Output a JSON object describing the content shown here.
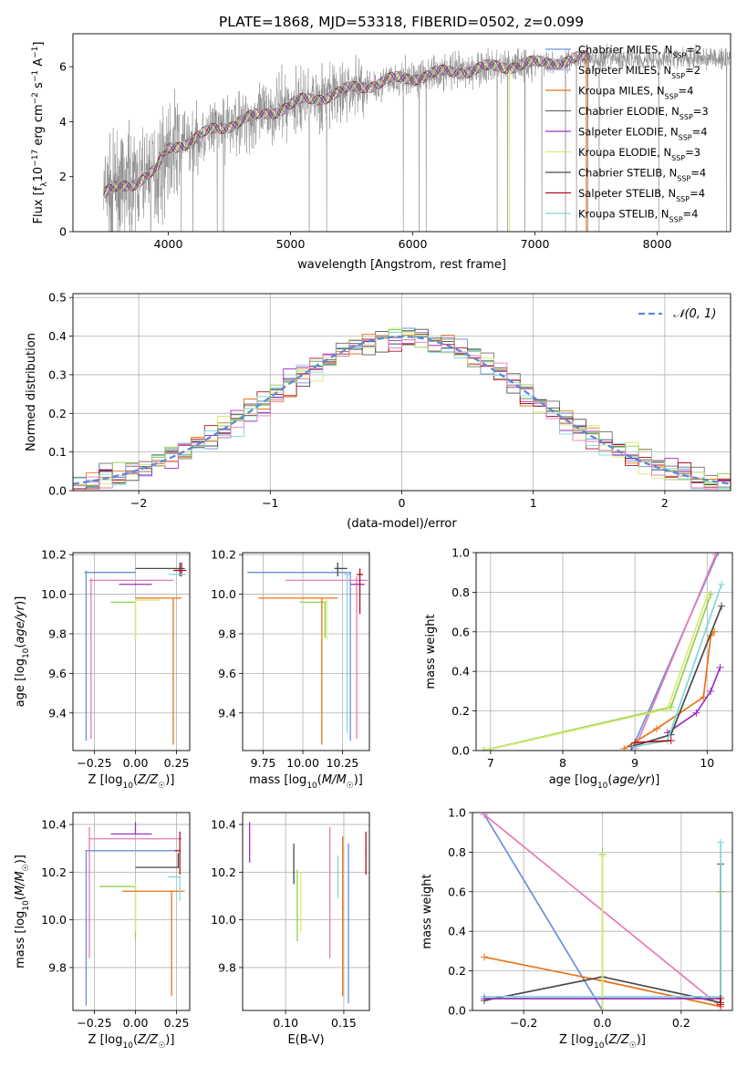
{
  "figure_title": "PLATE=1868, MJD=53318, FIBERID=0502, z=0.099",
  "colors": [
    "#6a8fdc",
    "#b0b0e8",
    "#e97316",
    "#6c6c6c",
    "#9b30c0",
    "#d8e874",
    "#4a4a4a",
    "#b01020",
    "#7fd8d8",
    "#8fd050",
    "#e87ab8"
  ],
  "chart_data": [
    {
      "id": "spectrum",
      "type": "line",
      "title": "PLATE=1868, MJD=53318, FIBERID=0502, z=0.099",
      "xlabel": "wavelength [Angstrom, rest frame]",
      "ylabel": "Flux [f_λ 10^-17 erg cm^-2 s^-1 A^-1]",
      "xlim": [
        3220,
        8600
      ],
      "ylim": [
        0,
        7.2
      ],
      "xticks": [
        4000,
        5000,
        6000,
        7000,
        8000
      ],
      "yticks": [
        0,
        2,
        4,
        6
      ],
      "grid": false,
      "legend_position": "top-right",
      "continuum": {
        "x": [
          3460,
          3520,
          3600,
          3700,
          3800,
          3900,
          4000,
          4100,
          4200,
          4300,
          4400,
          4500,
          4600,
          4700,
          4800,
          4900,
          5000,
          5100,
          5200,
          5300,
          5400,
          5500,
          5600,
          5700,
          5800,
          5900,
          6000,
          6100,
          6200,
          6300,
          6400,
          6500,
          6600,
          6700,
          6800,
          6900,
          7000,
          7100,
          7200,
          7300,
          7400
        ],
        "y": [
          1.3,
          1.45,
          1.6,
          1.75,
          2.0,
          2.2,
          3.0,
          3.2,
          3.35,
          3.55,
          3.75,
          3.9,
          4.05,
          4.15,
          4.3,
          4.45,
          4.6,
          4.75,
          4.85,
          4.95,
          5.05,
          5.2,
          5.3,
          5.4,
          5.5,
          5.55,
          5.6,
          5.7,
          5.75,
          5.8,
          5.85,
          5.9,
          5.95,
          6.0,
          6.05,
          6.1,
          6.1,
          6.15,
          6.2,
          6.25,
          6.3
        ]
      },
      "series": [
        {
          "name": "Chabrier MILES, N_SSP=2",
          "color": "#6a8fdc"
        },
        {
          "name": "Salpeter MILES, N_SSP=2",
          "color": "#b0b0e8"
        },
        {
          "name": "Kroupa MILES, N_SSP=4",
          "color": "#e97316"
        },
        {
          "name": "Chabrier ELODIE, N_SSP=3",
          "color": "#6c6c6c"
        },
        {
          "name": "Salpeter ELODIE, N_SSP=4",
          "color": "#9b30c0"
        },
        {
          "name": "Kroupa ELODIE, N_SSP=3",
          "color": "#d8e874"
        },
        {
          "name": "Chabrier STELIB, N_SSP=4",
          "color": "#4a4a4a"
        },
        {
          "name": "Salpeter STELIB, N_SSP=4",
          "color": "#b01020"
        },
        {
          "name": "Kroupa STELIB, N_SSP=4",
          "color": "#7fd8d8"
        }
      ]
    },
    {
      "id": "residuals",
      "type": "line",
      "xlabel": "(data-model)/error",
      "ylabel": "Normed distribution",
      "xlim": [
        -2.5,
        2.5
      ],
      "ylim": [
        0,
        0.51
      ],
      "xticks": [
        -2,
        -1,
        0,
        1,
        2
      ],
      "yticks": [
        0.0,
        0.1,
        0.2,
        0.3,
        0.4,
        0.5
      ],
      "grid": true,
      "legend_position": "top-right",
      "reference": {
        "name": "𝒩(0, 1)",
        "mean": 0,
        "sigma": 1,
        "color": "#5b8ad8"
      },
      "bin_width": 0.1
    },
    {
      "id": "age_vs_Z",
      "type": "scatter",
      "xlabel": "Z [log10(Z/Z☉)]",
      "ylabel": "age [log10(age/yr)]",
      "xlim": [
        -0.38,
        0.33
      ],
      "ylim": [
        9.21,
        10.21
      ],
      "xticks": [
        -0.25,
        0.0,
        0.25
      ],
      "xticklabels": [
        "−0.25",
        "0.00",
        "0.25"
      ],
      "yticks": [
        9.4,
        9.6,
        9.8,
        10.0,
        10.2
      ],
      "grid": true,
      "points": [
        {
          "x": -0.3,
          "y": 10.11,
          "xerr": [
            0.01,
            0.3
          ],
          "yerr": [
            0.85,
            0.01
          ],
          "color": "#6a8fdc"
        },
        {
          "x": -0.27,
          "y": 10.07,
          "xerr": [
            0.01,
            0.5
          ],
          "yerr": [
            0.8,
            0.01
          ],
          "color": "#e87ab8"
        },
        {
          "x": 0.0,
          "y": 10.05,
          "xerr": [
            0.1,
            0.1
          ],
          "yerr": [
            0.0,
            0.0
          ],
          "color": "#9b30c0"
        },
        {
          "x": 0.0,
          "y": 9.96,
          "xerr": [
            0.15,
            0.0
          ],
          "yerr": [
            0.18,
            0.0
          ],
          "color": "#8fd050"
        },
        {
          "x": 0.0,
          "y": 9.97,
          "xerr": [
            0.0,
            0.15
          ],
          "yerr": [
            0.2,
            0.0
          ],
          "color": "#d8e874"
        },
        {
          "x": 0.23,
          "y": 9.98,
          "xerr": [
            0.23,
            0.05
          ],
          "yerr": [
            0.74,
            0.0
          ],
          "color": "#e97316"
        },
        {
          "x": 0.27,
          "y": 10.13,
          "xerr": [
            0.27,
            0.03
          ],
          "yerr": [
            0.04,
            0.03
          ],
          "color": "#4a4a4a"
        },
        {
          "x": 0.28,
          "y": 10.12,
          "xerr": [
            0.05,
            0.03
          ],
          "yerr": [
            0.03,
            0.04
          ],
          "color": "#b01020"
        },
        {
          "x": 0.3,
          "y": 10.1,
          "xerr": [
            0.1,
            0.0
          ],
          "yerr": [
            0.0,
            0.0
          ],
          "color": "#7fd8d8"
        }
      ]
    },
    {
      "id": "age_vs_mass",
      "type": "scatter",
      "xlabel": "mass [log10(M/M☉)]",
      "ylabel": "",
      "xlim": [
        9.62,
        10.42
      ],
      "ylim": [
        9.21,
        10.21
      ],
      "xticks": [
        9.75,
        10.0,
        10.25
      ],
      "xticklabels": [
        "9.75",
        "10.00",
        "10.25"
      ],
      "yticks": [
        9.4,
        9.6,
        9.8,
        10.0,
        10.2
      ],
      "grid": true,
      "points": [
        {
          "x": 10.3,
          "y": 10.11,
          "xerr": [
            0.65,
            0.0
          ],
          "yerr": [
            0.85,
            0.0
          ],
          "color": "#6a8fdc"
        },
        {
          "x": 10.34,
          "y": 10.07,
          "xerr": [
            0.45,
            0.07
          ],
          "yerr": [
            0.8,
            0.02
          ],
          "color": "#e87ab8"
        },
        {
          "x": 10.36,
          "y": 10.05,
          "xerr": [
            0.06,
            0.03
          ],
          "yerr": [
            0.0,
            0.0
          ],
          "color": "#9b30c0"
        },
        {
          "x": 10.14,
          "y": 9.96,
          "xerr": [
            0.16,
            0.0
          ],
          "yerr": [
            0.18,
            0.0
          ],
          "color": "#8fd050"
        },
        {
          "x": 10.15,
          "y": 9.97,
          "xerr": [
            0.0,
            0.0
          ],
          "yerr": [
            0.2,
            0.0
          ],
          "color": "#d8e874"
        },
        {
          "x": 10.12,
          "y": 9.98,
          "xerr": [
            0.4,
            0.1
          ],
          "yerr": [
            0.74,
            0.0
          ],
          "color": "#e97316"
        },
        {
          "x": 10.22,
          "y": 10.13,
          "xerr": [
            0.02,
            0.06
          ],
          "yerr": [
            0.04,
            0.03
          ],
          "color": "#4a4a4a"
        },
        {
          "x": 10.36,
          "y": 10.1,
          "xerr": [
            0.02,
            0.02
          ],
          "yerr": [
            0.2,
            0.03
          ],
          "color": "#b01020"
        },
        {
          "x": 10.28,
          "y": 10.1,
          "xerr": [
            0.02,
            0.02
          ],
          "yerr": [
            0.8,
            0.0
          ],
          "color": "#7fd8d8"
        }
      ]
    },
    {
      "id": "mass_weight_vs_age",
      "type": "line",
      "xlabel": "age [log10(age/yr)]",
      "ylabel": "mass weight",
      "xlim": [
        6.8,
        10.35
      ],
      "ylim": [
        0,
        1.0
      ],
      "xticks": [
        7,
        8,
        9,
        10
      ],
      "yticks": [
        0.0,
        0.2,
        0.4,
        0.6,
        0.8,
        1.0
      ],
      "grid": true,
      "series": [
        {
          "color": "#6a8fdc",
          "x": [
            8.95,
            10.15
          ],
          "y": [
            0.0,
            1.0
          ]
        },
        {
          "color": "#e87ab8",
          "x": [
            9.0,
            10.12
          ],
          "y": [
            0.01,
            0.99
          ]
        },
        {
          "color": "#e97316",
          "x": [
            8.85,
            9.3,
            9.95,
            10.05,
            10.1
          ],
          "y": [
            0.01,
            0.11,
            0.27,
            0.58,
            0.6
          ]
        },
        {
          "color": "#9b30c0",
          "x": [
            9.45,
            9.85,
            10.05,
            10.18
          ],
          "y": [
            0.09,
            0.19,
            0.3,
            0.42
          ]
        },
        {
          "color": "#4a4a4a",
          "x": [
            8.95,
            9.5,
            10.2
          ],
          "y": [
            0.02,
            0.08,
            0.73
          ]
        },
        {
          "color": "#7fd8d8",
          "x": [
            9.0,
            9.45,
            10.2
          ],
          "y": [
            0.02,
            0.05,
            0.84
          ]
        },
        {
          "color": "#8fd050",
          "x": [
            6.9,
            9.5,
            10.05
          ],
          "y": [
            0.0,
            0.22,
            0.79
          ]
        },
        {
          "color": "#d8e874",
          "x": [
            6.92,
            9.45,
            10.0
          ],
          "y": [
            0.0,
            0.21,
            0.78
          ]
        },
        {
          "color": "#b01020",
          "x": [
            9.0,
            9.5
          ],
          "y": [
            0.04,
            0.05
          ]
        }
      ]
    },
    {
      "id": "mass_vs_Z",
      "type": "scatter",
      "xlabel": "Z [log10(Z/Z☉)]",
      "ylabel": "mass [log10(M/M☉)]",
      "xlim": [
        -0.38,
        0.33
      ],
      "ylim": [
        9.62,
        10.45
      ],
      "xticks": [
        -0.25,
        0.0,
        0.25
      ],
      "xticklabels": [
        "−0.25",
        "0.00",
        "0.25"
      ],
      "yticks": [
        9.8,
        10.0,
        10.2,
        10.4
      ],
      "grid": true,
      "points": [
        {
          "x": -0.3,
          "y": 10.29,
          "xerr": [
            0.0,
            0.55
          ],
          "yerr": [
            0.65,
            0.0
          ],
          "color": "#6a8fdc"
        },
        {
          "x": -0.28,
          "y": 10.34,
          "xerr": [
            0.0,
            0.56
          ],
          "yerr": [
            0.5,
            0.05
          ],
          "color": "#e87ab8"
        },
        {
          "x": 0.0,
          "y": 10.36,
          "xerr": [
            0.15,
            0.1
          ],
          "yerr": [
            0.0,
            0.05
          ],
          "color": "#9b30c0"
        },
        {
          "x": 0.0,
          "y": 10.14,
          "xerr": [
            0.22,
            0.0
          ],
          "yerr": [
            0.22,
            0.0
          ],
          "color": "#8fd050"
        },
        {
          "x": 0.0,
          "y": 10.15,
          "xerr": [
            0.0,
            0.0
          ],
          "yerr": [
            0.2,
            0.0
          ],
          "color": "#d8e874"
        },
        {
          "x": 0.22,
          "y": 10.12,
          "xerr": [
            0.3,
            0.08
          ],
          "yerr": [
            0.44,
            0.0
          ],
          "color": "#e97316"
        },
        {
          "x": 0.26,
          "y": 10.22,
          "xerr": [
            0.26,
            0.0
          ],
          "yerr": [
            0.0,
            0.06
          ],
          "color": "#4a4a4a"
        },
        {
          "x": 0.27,
          "y": 10.29,
          "xerr": [
            0.03,
            0.0
          ],
          "yerr": [
            0.1,
            0.08
          ],
          "color": "#b01020"
        },
        {
          "x": 0.27,
          "y": 10.18,
          "xerr": [
            0.07,
            0.0
          ],
          "yerr": [
            0.1,
            0.0
          ],
          "color": "#7fd8d8"
        }
      ]
    },
    {
      "id": "mass_vs_ebv",
      "type": "scatter",
      "xlabel": "E(B-V)",
      "ylabel": "",
      "xlim": [
        0.063,
        0.172
      ],
      "ylim": [
        9.62,
        10.45
      ],
      "xticks": [
        0.1,
        0.15
      ],
      "xticklabels": [
        "0.10",
        "0.15"
      ],
      "yticks": [
        9.8,
        10.0,
        10.2,
        10.4
      ],
      "grid": true,
      "points": [
        {
          "x": 0.069,
          "y": 10.3,
          "yerr": [
            0.06,
            0.11
          ],
          "color": "#9b30c0"
        },
        {
          "x": 0.107,
          "y": 10.2,
          "yerr": [
            0.05,
            0.12
          ],
          "color": "#4a4a4a"
        },
        {
          "x": 0.11,
          "y": 10.15,
          "yerr": [
            0.24,
            0.06
          ],
          "color": "#8fd050"
        },
        {
          "x": 0.113,
          "y": 10.08,
          "yerr": [
            0.13,
            0.12
          ],
          "color": "#d8e874"
        },
        {
          "x": 0.138,
          "y": 10.15,
          "yerr": [
            0.31,
            0.24
          ],
          "color": "#e87ab8"
        },
        {
          "x": 0.145,
          "y": 10.2,
          "yerr": [
            0.11,
            0.07
          ],
          "color": "#7fd8d8"
        },
        {
          "x": 0.149,
          "y": 10.05,
          "yerr": [
            0.37,
            0.3
          ],
          "color": "#e97316"
        },
        {
          "x": 0.154,
          "y": 10.0,
          "yerr": [
            0.35,
            0.32
          ],
          "color": "#6a8fdc"
        },
        {
          "x": 0.169,
          "y": 10.28,
          "yerr": [
            0.09,
            0.09
          ],
          "color": "#b01020"
        }
      ]
    },
    {
      "id": "mass_weight_vs_Z",
      "type": "line",
      "xlabel": "Z [log10(Z/Z☉)]",
      "ylabel": "mass weight",
      "xlim": [
        -0.33,
        0.33
      ],
      "ylim": [
        0,
        1.0
      ],
      "xticks": [
        -0.2,
        0.0,
        0.2
      ],
      "xticklabels": [
        "−0.2",
        "0.0",
        "0.2"
      ],
      "yticks": [
        0.0,
        0.2,
        0.4,
        0.6,
        0.8,
        1.0
      ],
      "grid": true,
      "series": [
        {
          "color": "#6a8fdc",
          "x": [
            -0.3,
            0.0
          ],
          "y": [
            0.99,
            0.0
          ]
        },
        {
          "color": "#e87ab8",
          "x": [
            -0.3,
            0.3
          ],
          "y": [
            0.99,
            0.02
          ]
        },
        {
          "color": "#e97316",
          "x": [
            -0.3,
            0.0,
            0.3,
            0.3
          ],
          "y": [
            0.27,
            0.15,
            0.02,
            0.6
          ]
        },
        {
          "color": "#4a4a4a",
          "x": [
            -0.3,
            0.0,
            0.3,
            0.3
          ],
          "y": [
            0.05,
            0.17,
            0.04,
            0.74
          ]
        },
        {
          "color": "#7fd8d8",
          "x": [
            -0.3,
            0.3,
            0.3
          ],
          "y": [
            0.07,
            0.07,
            0.85
          ]
        },
        {
          "color": "#8fd050",
          "x": [
            0.0,
            0.0
          ],
          "y": [
            0.0,
            0.79
          ]
        },
        {
          "color": "#d8e874",
          "x": [
            0.0,
            0.0
          ],
          "y": [
            0.0,
            0.78
          ]
        },
        {
          "color": "#9b30c0",
          "x": [
            -0.3,
            0.3
          ],
          "y": [
            0.06,
            0.06
          ]
        },
        {
          "color": "#b01020",
          "x": [
            0.3,
            0.3
          ],
          "y": [
            0.03,
            0.06
          ]
        }
      ]
    }
  ]
}
